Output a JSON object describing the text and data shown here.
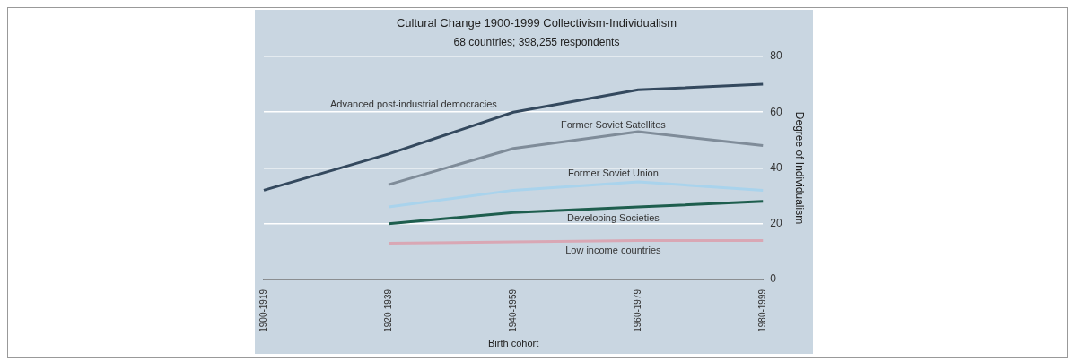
{
  "chart_data": {
    "type": "line",
    "title": "Cultural Change 1900-1999 Collectivism-Individualism",
    "subtitle": "68 countries; 398,255 respondents",
    "xlabel": "Birth cohort",
    "ylabel": "Degree of Individualism",
    "categories": [
      "1900-1919",
      "1920-1939",
      "1940-1959",
      "1960-1979",
      "1980-1999"
    ],
    "series": [
      {
        "name": "Advanced post-industrial democracies",
        "color": "#34495e",
        "values": [
          32,
          45,
          60,
          68,
          70
        ]
      },
      {
        "name": "Former Soviet Satellites",
        "color": "#7f8c99",
        "values": [
          null,
          34,
          47,
          53,
          48
        ]
      },
      {
        "name": "Former Soviet Union",
        "color": "#a9d3ec",
        "values": [
          null,
          26,
          32,
          35,
          32
        ]
      },
      {
        "name": "Developing Societies",
        "color": "#1e5e4e",
        "values": [
          null,
          20,
          24,
          26,
          28
        ]
      },
      {
        "name": "Low income countries",
        "color": "#d9a7b4",
        "values": [
          null,
          13,
          13.5,
          14,
          14
        ]
      }
    ],
    "ylim": [
      0,
      80
    ],
    "yticks": [
      0,
      20,
      40,
      60,
      80
    ],
    "grid": "y",
    "legend": false,
    "marker": "none",
    "line_style": "solid"
  }
}
